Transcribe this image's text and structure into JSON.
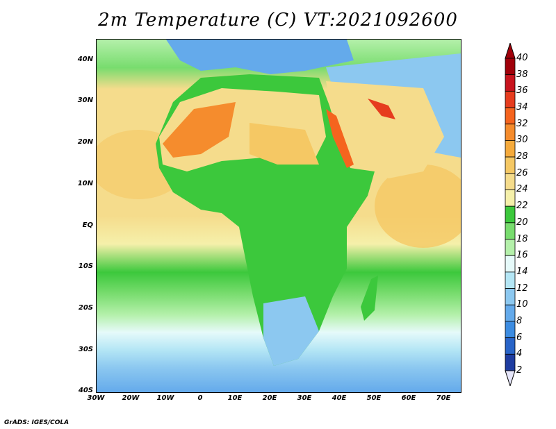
{
  "title": "2m Temperature (C) VT:2021092600",
  "credit": "GrADS: IGES/COLA",
  "map": {
    "lat_ticks": [
      "40N",
      "30N",
      "20N",
      "10N",
      "EQ",
      "10S",
      "20S",
      "30S",
      "40S"
    ],
    "lon_ticks": [
      "30W",
      "20W",
      "10W",
      "0",
      "10E",
      "20E",
      "30E",
      "40E",
      "50E",
      "60E",
      "70E"
    ]
  },
  "colorbar": {
    "levels": [
      "40",
      "38",
      "36",
      "34",
      "32",
      "30",
      "28",
      "26",
      "24",
      "22",
      "20",
      "18",
      "16",
      "14",
      "12",
      "10",
      "8",
      "6",
      "4",
      "2"
    ],
    "colors": [
      "#a0000a",
      "#c8141e",
      "#e63c1e",
      "#f5641e",
      "#f58c2d",
      "#f5aa3c",
      "#f5c864",
      "#f5dc8c",
      "#f5f0aa",
      "#3cc83c",
      "#78dc6e",
      "#b4f0aa",
      "#e6fafa",
      "#b4e6f5",
      "#8cc8f0",
      "#64aaeb",
      "#3c8ce1",
      "#2864c8",
      "#1e3ca0",
      "#0a146e"
    ],
    "top_arrow_color": "#a0000a",
    "bottom_arrow_color": "#e6e6fa"
  }
}
